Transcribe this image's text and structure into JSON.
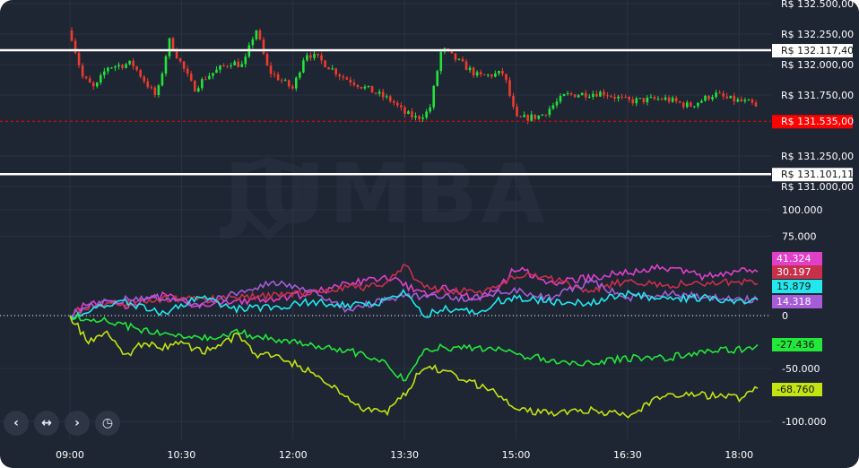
{
  "colors": {
    "background": "#1e2533",
    "grid": "#2b3344",
    "text": "#ffffff",
    "up_candle": "#22e33a",
    "down_candle": "#ef3b2c",
    "watermark": "#252d3c"
  },
  "watermark_text": "JUMBA",
  "controls": [
    {
      "name": "scroll-left-button",
      "icon": "chevron-left-icon",
      "glyph": "‹"
    },
    {
      "name": "reset-zoom-button",
      "icon": "horizontal-arrows-icon",
      "glyph": "↔"
    },
    {
      "name": "scroll-right-button",
      "icon": "chevron-right-icon",
      "glyph": "›"
    },
    {
      "name": "clock-button",
      "icon": "clock-icon",
      "glyph": "◷"
    }
  ],
  "chart_data": [
    {
      "type": "candlestick",
      "ylim": [
        131000,
        132500
      ],
      "y_ticks": [
        "R$ 132.500,00",
        "R$ 132.250,00",
        "R$ 132.000,00",
        "R$ 131.750,00",
        "R$ 131.250,00",
        "R$ 131.000,00"
      ],
      "y_tick_values": [
        132500,
        132250,
        132000,
        131750,
        131250,
        131000
      ],
      "price_path": {
        "times": [
          "09:00",
          "09:10",
          "09:20",
          "09:30",
          "09:50",
          "10:10",
          "10:20",
          "10:40",
          "10:50",
          "11:10",
          "11:20",
          "11:30",
          "11:40",
          "12:00",
          "12:10",
          "12:20",
          "12:40",
          "13:00",
          "13:20",
          "13:30",
          "13:40",
          "13:50",
          "14:00",
          "14:30",
          "14:50",
          "15:00",
          "15:20",
          "15:40",
          "16:10",
          "16:30",
          "17:00",
          "17:20",
          "17:40",
          "17:50",
          "18:10",
          "18:20"
        ],
        "prices": [
          132280,
          131900,
          131800,
          131980,
          132010,
          131730,
          132200,
          131800,
          131900,
          132020,
          131990,
          132300,
          131950,
          131800,
          132100,
          132050,
          131900,
          131800,
          131700,
          131600,
          131560,
          131620,
          132130,
          131900,
          131930,
          131550,
          131580,
          131750,
          131770,
          131700,
          131720,
          131660,
          131760,
          131720,
          131680,
          131580
        ]
      },
      "reference_lines": [
        {
          "label": "R$ 132.117,40",
          "value": 132117.4,
          "color": "#ffffff",
          "style": "solid"
        },
        {
          "label": "R$ 131.101,11",
          "value": 131101.11,
          "color": "#ffffff",
          "style": "solid"
        },
        {
          "label": "R$ 131.535,00",
          "value": 131535,
          "color": "#ff0000",
          "style": "dashed"
        }
      ]
    },
    {
      "type": "line",
      "ylim": [
        -100000,
        100000
      ],
      "y_ticks": [
        "100.000",
        "75.000",
        "0",
        "-50.000",
        "-100.000"
      ],
      "y_tick_values": [
        100000,
        75000,
        0,
        -50000,
        -100000
      ],
      "x_ticks": [
        "09:00",
        "10:30",
        "12:00",
        "13:30",
        "15:00",
        "16:30",
        "18:00"
      ],
      "series": [
        {
          "name": "",
          "label": "41.324",
          "color": "#e040c8",
          "last": 41324,
          "times": [
            "09:00",
            "09:15",
            "09:45",
            "10:15",
            "10:45",
            "11:15",
            "11:45",
            "12:15",
            "12:45",
            "13:15",
            "13:30",
            "13:45",
            "14:00",
            "14:15",
            "14:30",
            "14:45",
            "15:00",
            "15:30",
            "16:00",
            "16:30",
            "17:00",
            "17:30",
            "18:00",
            "18:15"
          ],
          "values": [
            0,
            14000,
            10000,
            19000,
            9000,
            14000,
            16000,
            21000,
            30000,
            37000,
            29000,
            20000,
            27000,
            19000,
            17000,
            23000,
            46000,
            30000,
            36000,
            41000,
            46000,
            37000,
            43000,
            41324
          ]
        },
        {
          "name": "",
          "label": "30.197",
          "color": "#c8304a",
          "last": 30197,
          "times": [
            "09:00",
            "09:15",
            "09:45",
            "10:15",
            "10:45",
            "11:15",
            "11:45",
            "12:15",
            "12:45",
            "13:15",
            "13:30",
            "13:45",
            "14:00",
            "14:15",
            "14:30",
            "14:45",
            "15:00",
            "15:30",
            "16:00",
            "16:30",
            "17:00",
            "17:30",
            "18:00",
            "18:15"
          ],
          "values": [
            0,
            9000,
            12000,
            16000,
            15000,
            17000,
            19000,
            22000,
            26000,
            29000,
            47000,
            28000,
            23000,
            24000,
            21000,
            26000,
            39000,
            34000,
            24000,
            33000,
            29000,
            31000,
            32000,
            30197
          ]
        },
        {
          "name": "",
          "label": "14.318",
          "color": "#a55cd6",
          "last": 14318,
          "times": [
            "09:00",
            "09:15",
            "09:45",
            "10:15",
            "10:45",
            "11:15",
            "11:45",
            "12:15",
            "12:45",
            "13:15",
            "13:30",
            "13:45",
            "14:00",
            "14:15",
            "14:30",
            "14:45",
            "15:00",
            "15:30",
            "16:00",
            "16:30",
            "17:00",
            "17:30",
            "18:00",
            "18:15"
          ],
          "values": [
            0,
            11000,
            15000,
            17000,
            10000,
            21000,
            31000,
            22000,
            5000,
            16000,
            19000,
            17000,
            20000,
            15000,
            17000,
            22000,
            23000,
            17000,
            33000,
            16000,
            22000,
            17000,
            16000,
            14318
          ]
        },
        {
          "name": "",
          "label": "15.879",
          "color": "#22e8ee",
          "last": 15879,
          "times": [
            "09:00",
            "09:15",
            "09:45",
            "10:15",
            "10:45",
            "11:15",
            "11:45",
            "12:15",
            "12:45",
            "13:15",
            "13:30",
            "13:45",
            "14:00",
            "14:15",
            "14:30",
            "14:45",
            "15:00",
            "15:30",
            "16:00",
            "16:30",
            "17:00",
            "17:30",
            "18:00",
            "18:15"
          ],
          "values": [
            0,
            5000,
            12000,
            2000,
            18000,
            6000,
            8000,
            13000,
            10000,
            13000,
            22000,
            0,
            6000,
            5000,
            3000,
            14000,
            17000,
            13000,
            12000,
            21000,
            15000,
            17000,
            13000,
            15879
          ]
        },
        {
          "name": "",
          "label": "-27.436",
          "color": "#22e83a",
          "last": -27436,
          "times": [
            "09:00",
            "09:15",
            "09:45",
            "10:15",
            "10:45",
            "11:15",
            "11:45",
            "12:15",
            "12:45",
            "13:15",
            "13:30",
            "13:45",
            "14:00",
            "14:15",
            "14:30",
            "14:45",
            "15:00",
            "15:30",
            "16:00",
            "16:30",
            "17:00",
            "17:30",
            "18:00",
            "18:15"
          ],
          "values": [
            0,
            -2000,
            -10000,
            -17000,
            -22000,
            -16000,
            -22000,
            -29000,
            -33000,
            -45000,
            -62000,
            -34000,
            -29000,
            -31000,
            -31000,
            -33000,
            -37000,
            -42000,
            -45000,
            -40000,
            -40000,
            -35000,
            -32000,
            -27436
          ]
        },
        {
          "name": "",
          "label": "-68.760",
          "color": "#c2e412",
          "last": -68760,
          "times": [
            "09:00",
            "09:15",
            "09:30",
            "09:45",
            "10:00",
            "10:15",
            "10:30",
            "10:45",
            "11:00",
            "11:15",
            "11:30",
            "11:45",
            "12:15",
            "12:45",
            "13:00",
            "13:15",
            "13:30",
            "13:45",
            "14:00",
            "14:15",
            "14:30",
            "14:45",
            "15:00",
            "15:30",
            "16:00",
            "16:30",
            "16:45",
            "17:00",
            "17:30",
            "18:00",
            "18:15"
          ],
          "values": [
            0,
            -25000,
            -15000,
            -40000,
            -25000,
            -30000,
            -25000,
            -34000,
            -30000,
            -18000,
            -38000,
            -36000,
            -54000,
            -78000,
            -90000,
            -92000,
            -75000,
            -48000,
            -52000,
            -58000,
            -66000,
            -73000,
            -90000,
            -92000,
            -89000,
            -95000,
            -85000,
            -75000,
            -75000,
            -78000,
            -68760
          ]
        }
      ]
    }
  ]
}
